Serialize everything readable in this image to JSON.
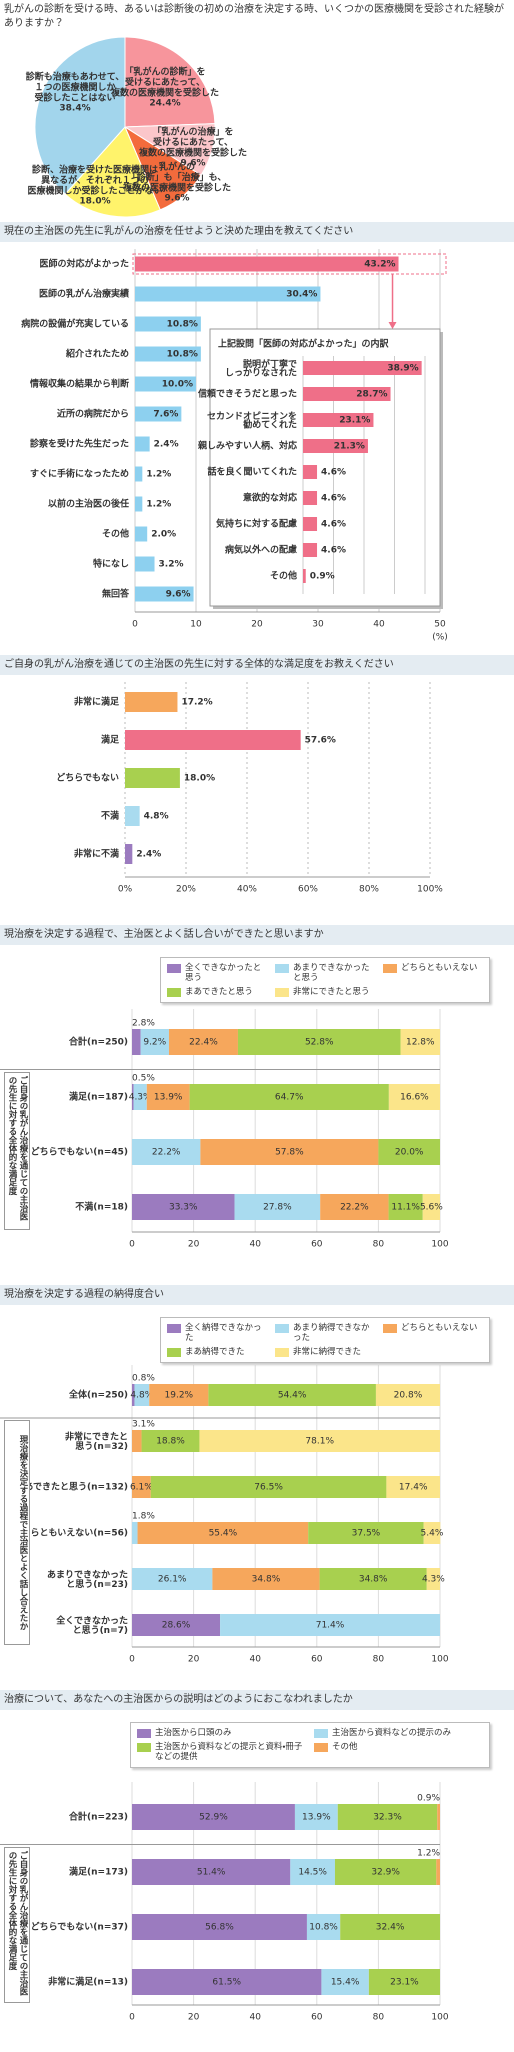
{
  "chart_data": [
    {
      "type": "pie",
      "title": "乳がんの診断を受ける時、あるいは診断後の初めの治療を決定する時、いくつかの医療機関を受診された経験がありますか？",
      "categories": [
        [
          "「乳がんの診断」を",
          "受けるにあたって、",
          "複数の医療機関を受診した"
        ],
        [
          "「乳がんの治療」を",
          "受けるにあたって、",
          "複数の医療機関を受診した"
        ],
        [
          "乳がんの",
          "「診断」も「治療」も、",
          "複数の医療機関を受診した"
        ],
        [
          "診断、治療を受けた医療機関は",
          "異なるが、それぞれ１つの",
          "医療機関しか受診したことがない"
        ],
        [
          "診断も治療もあわせて、",
          "１つの医療機関しか",
          "受診したことはない"
        ]
      ],
      "values": [
        24.4,
        9.6,
        9.6,
        18.0,
        38.4
      ],
      "value_labels": [
        "24.4%",
        "9.6%",
        "9.6%",
        "18.0%",
        "38.4%"
      ],
      "colors": [
        "#f7959c",
        "#fbc6ca",
        "#f36b3c",
        "#fff36b",
        "#a2d5ec"
      ]
    },
    {
      "type": "bar",
      "title": "現在の主治医の先生に乳がんの治療を任せようと決めた理由を教えてください",
      "categories": [
        "医師の対応がよかった",
        "医師の乳がん治療実績",
        "病院の設備が充実している",
        "紹介されたため",
        "情報収集の結果から判断",
        "近所の病院だから",
        "診察を受けた先生だった",
        "すぐに手術になったため",
        "以前の主治医の後任",
        "その他",
        "特になし",
        "無回答"
      ],
      "values": [
        43.2,
        30.4,
        10.8,
        10.8,
        10.0,
        7.6,
        2.4,
        1.2,
        1.2,
        2.0,
        3.2,
        9.6
      ],
      "value_labels": [
        "43.2%",
        "30.4%",
        "10.8%",
        "10.8%",
        "10.0%",
        "7.6%",
        "2.4%",
        "1.2%",
        "1.2%",
        "2.0%",
        "3.2%",
        "9.6%"
      ],
      "colors": [
        "#ef6f88",
        "#8dd0ef",
        "#8dd0ef",
        "#8dd0ef",
        "#8dd0ef",
        "#8dd0ef",
        "#8dd0ef",
        "#8dd0ef",
        "#8dd0ef",
        "#8dd0ef",
        "#8dd0ef",
        "#8dd0ef"
      ],
      "xlim": [
        0,
        50
      ],
      "xticks": [
        0,
        10,
        20,
        30,
        40,
        50
      ],
      "xlabel": "(%)",
      "grid": true
    },
    {
      "type": "bar",
      "title": "上記設問「医師の対応がよかった」の内訳",
      "categories": [
        [
          "説明が丁寧で",
          "しっかりなされた"
        ],
        "信頼できそうだと思った",
        [
          "セカンドオピニオンを",
          "勧めてくれた"
        ],
        "親しみやすい人柄、対応",
        "話を良く聞いてくれた",
        "意欲的な対応",
        "気持ちに対する配慮",
        "病気以外への配慮",
        "その他"
      ],
      "values": [
        38.9,
        28.7,
        23.1,
        21.3,
        4.6,
        4.6,
        4.6,
        4.6,
        0.9
      ],
      "value_labels": [
        "38.9%",
        "28.7%",
        "23.1%",
        "21.3%",
        "4.6%",
        "4.6%",
        "4.6%",
        "4.6%",
        "0.9%"
      ],
      "color": "#ef6f88",
      "xlim": [
        0,
        40
      ],
      "xticks": [
        0,
        10,
        20,
        30,
        40
      ],
      "grid": true
    },
    {
      "type": "bar",
      "title": "ご自身の乳がん治療を通じての主治医の先生に対する全体的な満足度をお教えください",
      "categories": [
        "非常に満足",
        "満足",
        "どちらでもない",
        "不満",
        "非常に不満"
      ],
      "values": [
        17.2,
        57.6,
        18.0,
        4.8,
        2.4
      ],
      "value_labels": [
        "17.2%",
        "57.6%",
        "18.0%",
        "4.8%",
        "2.4%"
      ],
      "colors": [
        "#f6a75c",
        "#ef6f88",
        "#a8d04f",
        "#a9dbef",
        "#9b7bbf"
      ],
      "xlim": [
        0,
        100
      ],
      "xticks": [
        {
          "value": 0,
          "label": "0%"
        },
        {
          "value": 20,
          "label": "20%"
        },
        {
          "value": 40,
          "label": "40%"
        },
        {
          "value": 60,
          "label": "60%"
        },
        {
          "value": 80,
          "label": "80%"
        },
        {
          "value": 100,
          "label": "100%"
        }
      ],
      "grid": true
    },
    {
      "type": "stacked_bar",
      "title": "現治療を決定する過程で、主治医とよく話し合いができたと思いますか",
      "group_label": "ご自身の乳がん治療を通じての主治医の先生に対する全体的な満足度",
      "categories": [
        "合計(n=250)",
        "満足(n=187)",
        "どちらでもない(n=45)",
        "不満(n=18)"
      ],
      "series": [
        {
          "name": "全くできなかったと思う",
          "color": "#9b7bbf",
          "values": [
            2.8,
            0.5,
            null,
            33.3
          ],
          "value_labels": [
            "2.8%",
            "0.5%",
            null,
            "33.3%"
          ]
        },
        {
          "name": "あまりできなかったと思う",
          "color": "#a9dbef",
          "values": [
            9.2,
            4.3,
            22.2,
            27.8
          ],
          "value_labels": [
            "9.2%",
            "4.3%",
            "22.2%",
            "27.8%"
          ]
        },
        {
          "name": "どちらともいえない",
          "color": "#f6a75c",
          "values": [
            22.4,
            13.9,
            57.8,
            22.2
          ],
          "value_labels": [
            "22.4%",
            "13.9%",
            "57.8%",
            "22.2%"
          ]
        },
        {
          "name": "まあできたと思う",
          "color": "#a8d04f",
          "values": [
            52.8,
            64.7,
            20.0,
            11.1
          ],
          "value_labels": [
            "52.8%",
            "64.7%",
            "20.0%",
            "11.1%"
          ]
        },
        {
          "name": "非常にできたと思う",
          "color": "#fbe58a",
          "values": [
            12.8,
            16.6,
            null,
            5.6
          ],
          "value_labels": [
            "12.8%",
            "16.6%",
            null,
            "5.6%"
          ]
        }
      ],
      "xlim": [
        0,
        100
      ],
      "xticks": [
        0,
        20,
        40,
        60,
        80,
        100
      ],
      "grid": true
    },
    {
      "type": "stacked_bar",
      "title": "現治療を決定する過程の納得度合い",
      "group_label": "現治療を決定する過程で主治医とよく話し合えたか",
      "categories": [
        "全体(n=250)",
        [
          "非常にできたと",
          "思う(n=32)"
        ],
        "まあできたと思う(n=132)",
        "どちらともいえない(n=56)",
        [
          "あまりできなかった",
          "と思う(n=23)"
        ],
        [
          "全くできなかった",
          "と思う(n=7)"
        ]
      ],
      "series": [
        {
          "name": "全く納得できなかった",
          "color": "#9b7bbf",
          "values": [
            0.8,
            null,
            null,
            null,
            null,
            28.6
          ],
          "value_labels": [
            "0.8%",
            null,
            null,
            null,
            null,
            "28.6%"
          ]
        },
        {
          "name": "あまり納得できなかった",
          "color": "#a9dbef",
          "values": [
            4.8,
            null,
            null,
            1.8,
            26.1,
            71.4
          ],
          "value_labels": [
            "4.8%",
            null,
            null,
            "1.8%",
            "26.1%",
            "71.4%"
          ]
        },
        {
          "name": "どちらともいえない",
          "color": "#f6a75c",
          "values": [
            19.2,
            3.1,
            6.1,
            55.4,
            34.8,
            null
          ],
          "value_labels": [
            "19.2%",
            "3.1%",
            "6.1%",
            "55.4%",
            "34.8%",
            null
          ]
        },
        {
          "name": "まあ納得できた",
          "color": "#a8d04f",
          "values": [
            54.4,
            18.8,
            76.5,
            37.5,
            34.8,
            null
          ],
          "value_labels": [
            "54.4%",
            "18.8%",
            "76.5%",
            "37.5%",
            "34.8%",
            null
          ]
        },
        {
          "name": "非常に納得できた",
          "color": "#fbe58a",
          "values": [
            20.8,
            78.1,
            17.4,
            5.4,
            4.3,
            null
          ],
          "value_labels": [
            "20.8%",
            "78.1%",
            "17.4%",
            "5.4%",
            "4.3%",
            null
          ]
        }
      ],
      "xlim": [
        0,
        100
      ],
      "xticks": [
        0,
        20,
        40,
        60,
        80,
        100
      ],
      "grid": true
    },
    {
      "type": "stacked_bar",
      "title": "治療について、あなたへの主治医からの説明はどのようにおこなわれましたか",
      "group_label": "ご自身の乳がん治療を通じての主治医の先生に対する全体的な満足度",
      "categories": [
        "合計(n=223)",
        "満足(n=173)",
        "どちらでもない(n=37)",
        "非常に満足(n=13)"
      ],
      "series": [
        {
          "name": "主治医から口頭のみ",
          "color": "#9b7bbf",
          "values": [
            52.9,
            51.4,
            56.8,
            61.5
          ],
          "value_labels": [
            "52.9%",
            "51.4%",
            "56.8%",
            "61.5%"
          ]
        },
        {
          "name": "主治医から資料などの提示のみ",
          "color": "#a9dbef",
          "values": [
            13.9,
            14.5,
            10.8,
            15.4
          ],
          "value_labels": [
            "13.9%",
            "14.5%",
            "10.8%",
            "15.4%"
          ]
        },
        {
          "name": "主治医から資料などの提示と資料・冊子などの提供",
          "color": "#a8d04f",
          "values": [
            32.3,
            32.9,
            32.4,
            23.1
          ],
          "value_labels": [
            "32.3%",
            "32.9%",
            "32.4%",
            "23.1%"
          ]
        },
        {
          "name": "その他",
          "color": "#f6a75c",
          "values": [
            0.9,
            1.2,
            null,
            null
          ],
          "value_labels": [
            "0.9%",
            "1.2%",
            null,
            null
          ]
        }
      ],
      "xlim": [
        0,
        100
      ],
      "xticks": [
        0,
        20,
        40,
        60,
        80,
        100
      ],
      "grid": true
    }
  ]
}
